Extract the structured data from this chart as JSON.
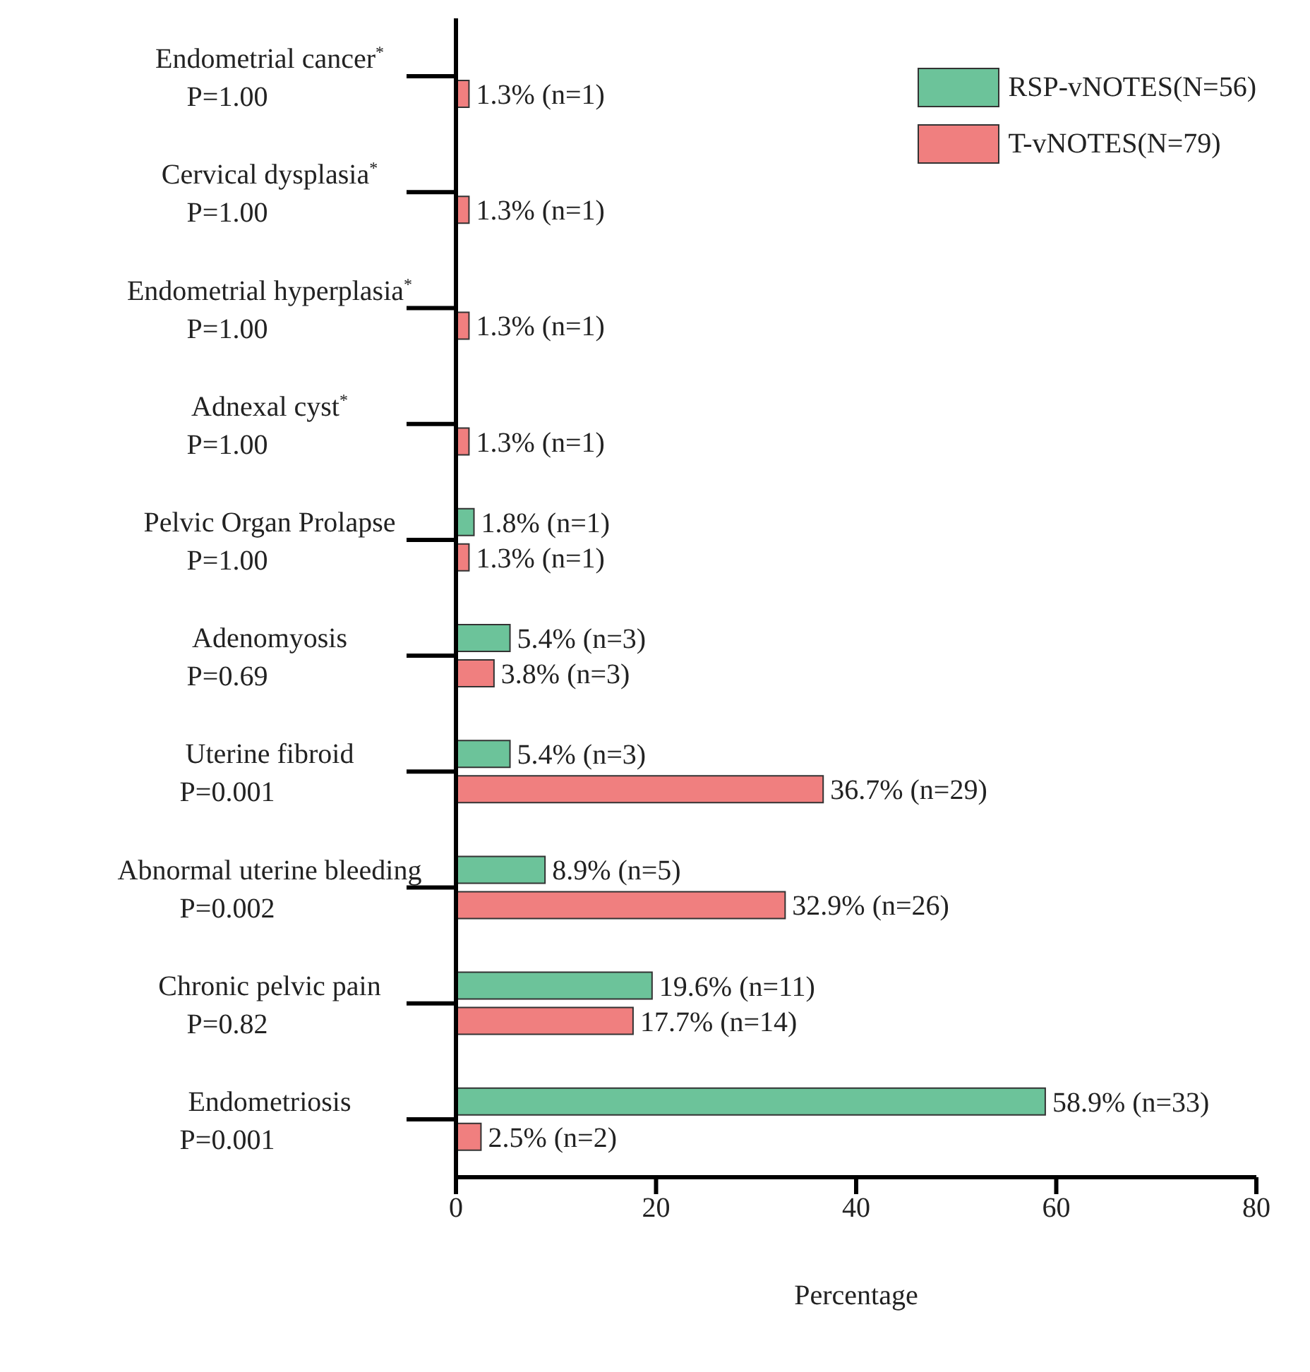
{
  "chart_data": {
    "type": "bar",
    "orientation": "horizontal",
    "xlabel": "Percentage",
    "categories": [
      "Endometrial cancer$^{*}$\nP=1.00",
      "Cervical dysplasia$^{*}$\nP=1.00",
      "Endometrial hyperplasia$^{*}$\nP=1.00",
      "Adnexal cyst$^{*}$\nP=1.00",
      "Pelvic Organ Prolapse\nP=1.00",
      "Adenomyosis\nP=0.69",
      "Uterine fibroid\nP=0.001",
      "Abnormal uterine bleeding\nP=0.002",
      "Chronic pelvic pain\nP=0.82",
      "Endometriosis\nP=0.001"
    ],
    "series": [
      {
        "name": "RSP-vNOTES(N=56)",
        "color": "#6cc39a",
        "values": [
          null,
          null,
          null,
          null,
          1.8,
          5.4,
          5.4,
          8.9,
          19.6,
          58.9
        ],
        "value_labels": [
          null,
          null,
          null,
          null,
          "1.8% (n=1)",
          "5.4% (n=3)",
          "5.4% (n=3)",
          "8.9% (n=5)",
          "19.6% (n=11)",
          "58.9% (n=33)"
        ]
      },
      {
        "name": "T-vNOTES(N=79)",
        "color": "#f07f7f",
        "values": [
          1.3,
          1.3,
          1.3,
          1.3,
          1.3,
          3.8,
          36.7,
          32.9,
          17.7,
          2.5
        ],
        "value_labels": [
          "1.3% (n=1)",
          "1.3% (n=1)",
          "1.3% (n=1)",
          "1.3% (n=1)",
          "1.3% (n=1)",
          "3.8% (n=3)",
          "36.7% (n=29)",
          "32.9% (n=26)",
          "17.7% (n=14)",
          "2.5% (n=2)"
        ]
      }
    ],
    "xlim": [
      0,
      80
    ],
    "xticks": [
      0,
      20,
      40,
      60,
      80
    ],
    "legend": "top right"
  }
}
